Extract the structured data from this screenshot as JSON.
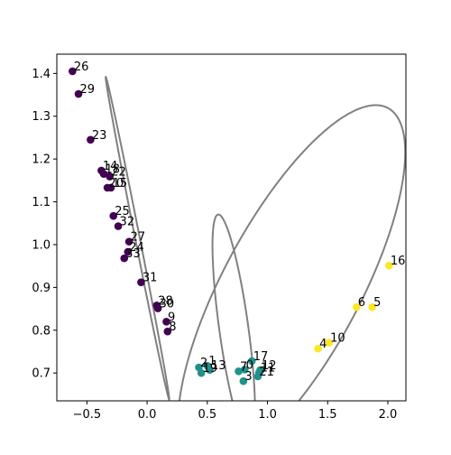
{
  "chart_data": {
    "type": "scatter",
    "title": "",
    "xlabel": "",
    "ylabel": "",
    "xlim": [
      -0.75,
      2.15
    ],
    "ylim": [
      0.635,
      1.445
    ],
    "x_ticks": [
      -0.5,
      0.0,
      0.5,
      1.0,
      1.5,
      2.0
    ],
    "x_tick_labels": [
      "−0.5",
      "0.0",
      "0.5",
      "1.0",
      "1.5",
      "2.0"
    ],
    "y_ticks": [
      0.7,
      0.8,
      0.9,
      1.0,
      1.1,
      1.2,
      1.3,
      1.4
    ],
    "y_tick_labels": [
      "0.7",
      "0.8",
      "0.9",
      "1.0",
      "1.1",
      "1.2",
      "1.3",
      "1.4"
    ],
    "grid": false,
    "legend": "none",
    "cluster_colors": {
      "0": "#440154",
      "1": "#21918c",
      "2": "#fde725"
    },
    "ellipse_color": "#808080",
    "points": [
      {
        "label": "26",
        "x": -0.62,
        "y": 1.405,
        "cluster": 0
      },
      {
        "label": "29",
        "x": -0.57,
        "y": 1.352,
        "cluster": 0
      },
      {
        "label": "23",
        "x": -0.47,
        "y": 1.245,
        "cluster": 0
      },
      {
        "label": "14",
        "x": -0.38,
        "y": 1.173,
        "cluster": 0
      },
      {
        "label": "18",
        "x": -0.36,
        "y": 1.165,
        "cluster": 0
      },
      {
        "label": "22",
        "x": -0.31,
        "y": 1.159,
        "cluster": 0
      },
      {
        "label": "20",
        "x": -0.33,
        "y": 1.133,
        "cluster": 0
      },
      {
        "label": "15",
        "x": -0.3,
        "y": 1.133,
        "cluster": 0
      },
      {
        "label": "25",
        "x": -0.28,
        "y": 1.067,
        "cluster": 0
      },
      {
        "label": "32",
        "x": -0.24,
        "y": 1.043,
        "cluster": 0
      },
      {
        "label": "27",
        "x": -0.15,
        "y": 1.007,
        "cluster": 0
      },
      {
        "label": "24",
        "x": -0.16,
        "y": 0.983,
        "cluster": 0
      },
      {
        "label": "33",
        "x": -0.19,
        "y": 0.968,
        "cluster": 0
      },
      {
        "label": "31",
        "x": -0.05,
        "y": 0.912,
        "cluster": 0
      },
      {
        "label": "28",
        "x": 0.08,
        "y": 0.858,
        "cluster": 0
      },
      {
        "label": "30",
        "x": 0.09,
        "y": 0.851,
        "cluster": 0
      },
      {
        "label": "9",
        "x": 0.16,
        "y": 0.82,
        "cluster": 0
      },
      {
        "label": "8",
        "x": 0.17,
        "y": 0.797,
        "cluster": 0
      },
      {
        "label": "2",
        "x": 0.43,
        "y": 0.713,
        "cluster": 1
      },
      {
        "label": "1",
        "x": 0.5,
        "y": 0.717,
        "cluster": 1
      },
      {
        "label": "19",
        "x": 0.45,
        "y": 0.7,
        "cluster": 1
      },
      {
        "label": "13",
        "x": 0.52,
        "y": 0.707,
        "cluster": 1
      },
      {
        "label": "17",
        "x": 0.87,
        "y": 0.728,
        "cluster": 1
      },
      {
        "label": "7",
        "x": 0.76,
        "y": 0.704,
        "cluster": 1
      },
      {
        "label": "0",
        "x": 0.81,
        "y": 0.708,
        "cluster": 1
      },
      {
        "label": "12",
        "x": 0.94,
        "y": 0.707,
        "cluster": 1
      },
      {
        "label": "11",
        "x": 0.93,
        "y": 0.701,
        "cluster": 1
      },
      {
        "label": "21",
        "x": 0.92,
        "y": 0.692,
        "cluster": 1
      },
      {
        "label": "3",
        "x": 0.8,
        "y": 0.681,
        "cluster": 1
      },
      {
        "label": "16",
        "x": 2.01,
        "y": 0.951,
        "cluster": 2
      },
      {
        "label": "6",
        "x": 1.74,
        "y": 0.854,
        "cluster": 2
      },
      {
        "label": "5",
        "x": 1.87,
        "y": 0.854,
        "cluster": 2
      },
      {
        "label": "10",
        "x": 1.51,
        "y": 0.771,
        "cluster": 2
      },
      {
        "label": "4",
        "x": 1.42,
        "y": 0.757,
        "cluster": 2
      }
    ],
    "ellipses": [
      {
        "cx": -0.08,
        "cy": 1.015,
        "rx": 0.46,
        "ry": 0.016,
        "angle_deg": -55
      },
      {
        "cx": 0.72,
        "cy": 0.805,
        "rx": 0.3,
        "ry": 0.108,
        "angle_deg": -60
      },
      {
        "cx": 1.2,
        "cy": 0.9,
        "rx": 1.0,
        "ry": 0.27,
        "angle_deg": 20
      }
    ]
  }
}
